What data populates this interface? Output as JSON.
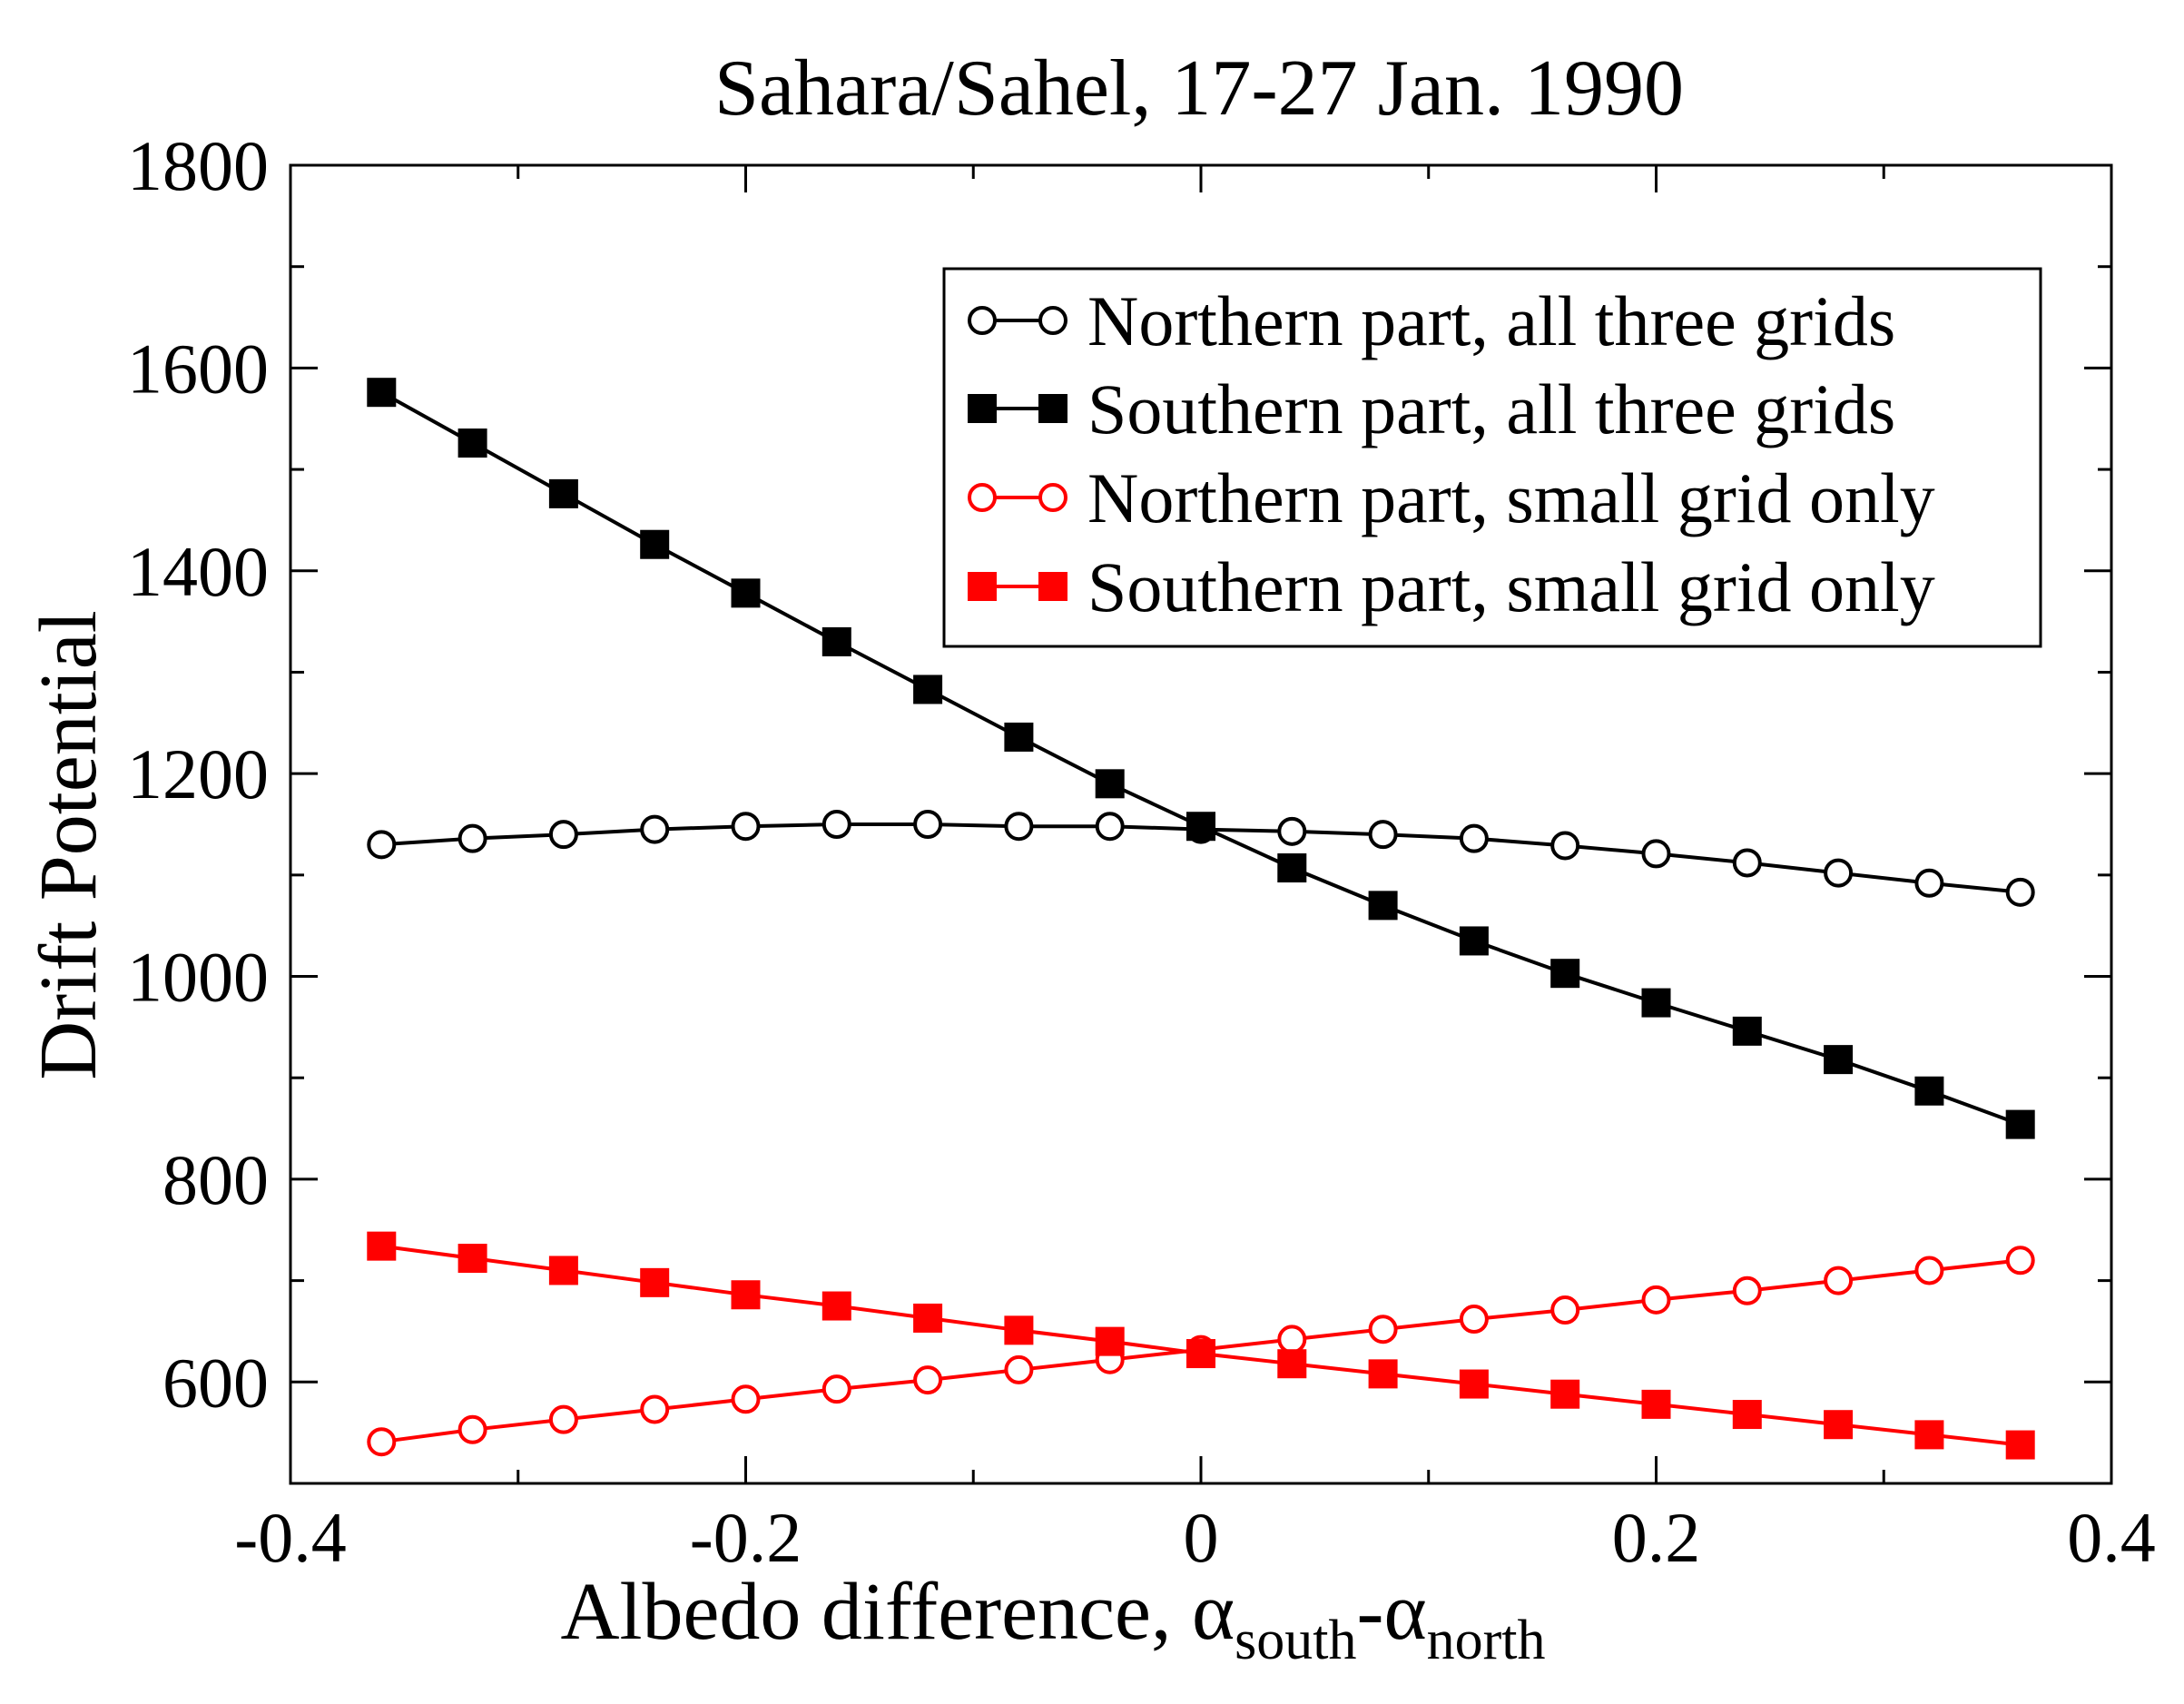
{
  "chart_data": {
    "type": "line",
    "title": "Sahara/Sahel, 17-27 Jan. 1990",
    "ylabel": "Drift Potential",
    "xlabel": {
      "text": "Albedo difference, ",
      "sym1": "α",
      "sub1": "south",
      "dash": "-",
      "sym2": "α",
      "sub2": "north"
    },
    "xlim": [
      -0.4,
      0.4
    ],
    "ylim": [
      500,
      1800
    ],
    "x_major_ticks": [
      -0.4,
      -0.2,
      0,
      0.2,
      0.4
    ],
    "x_tick_labels": [
      "-0.4",
      "-0.2",
      "0",
      "0.2",
      "0.4"
    ],
    "x_minor_ticks": [
      -0.3,
      -0.1,
      0.1,
      0.3
    ],
    "y_major_ticks": [
      600,
      800,
      1000,
      1200,
      1400,
      1600,
      1800
    ],
    "y_tick_labels": [
      "600",
      "800",
      "1000",
      "1200",
      "1400",
      "1600",
      "1800"
    ],
    "y_minor_ticks": [
      700,
      900,
      1100,
      1300,
      1500,
      1700
    ],
    "grid": false,
    "legend_position": "top-right",
    "x": [
      -0.36,
      -0.32,
      -0.28,
      -0.24,
      -0.2,
      -0.16,
      -0.12,
      -0.08,
      -0.04,
      0.0,
      0.04,
      0.08,
      0.12,
      0.16,
      0.2,
      0.24,
      0.28,
      0.32,
      0.36
    ],
    "series": [
      {
        "name": "Northern part, all three grids",
        "color": "#000000",
        "marker": "circle-open",
        "values": [
          1130,
          1136,
          1140,
          1145,
          1148,
          1150,
          1150,
          1148,
          1148,
          1145,
          1143,
          1140,
          1136,
          1129,
          1121,
          1112,
          1102,
          1092,
          1083
        ]
      },
      {
        "name": "Southern part, all three grids",
        "color": "#000000",
        "marker": "square-filled",
        "values": [
          1576,
          1526,
          1476,
          1426,
          1378,
          1330,
          1283,
          1236,
          1190,
          1148,
          1107,
          1070,
          1035,
          1003,
          974,
          946,
          918,
          887,
          854
        ]
      },
      {
        "name": "Northern part, small grid only",
        "color": "#ff0000",
        "marker": "circle-open",
        "values": [
          541,
          553,
          563,
          573,
          583,
          593,
          602,
          612,
          622,
          632,
          642,
          652,
          662,
          671,
          681,
          690,
          700,
          710,
          720
        ]
      },
      {
        "name": "Southern part, small grid only",
        "color": "#ff0000",
        "marker": "square-filled",
        "values": [
          734,
          722,
          710,
          698,
          686,
          675,
          663,
          651,
          640,
          628,
          618,
          608,
          598,
          588,
          578,
          568,
          558,
          548,
          538
        ]
      }
    ]
  }
}
